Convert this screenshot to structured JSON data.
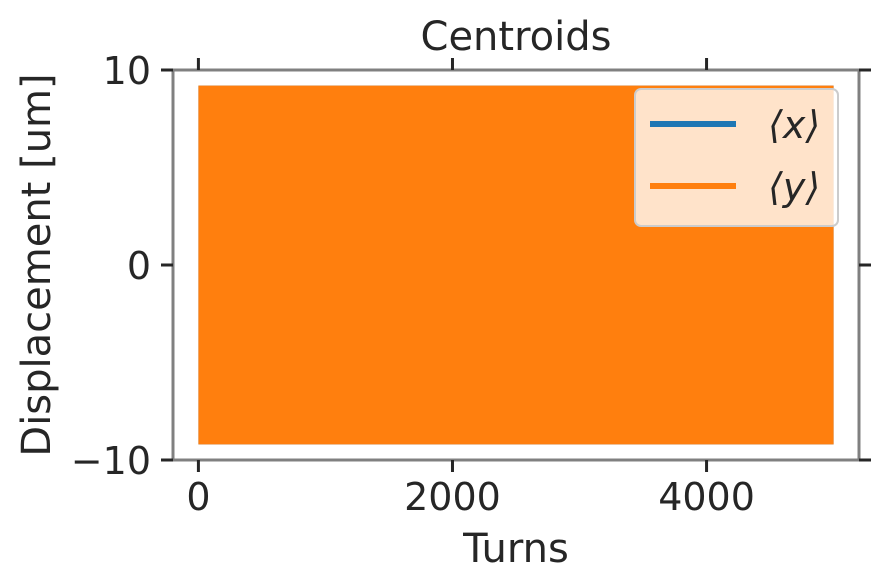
{
  "chart_data": {
    "type": "line",
    "title": "Centroids",
    "xlabel": "Turns",
    "ylabel": "Displacement [um]",
    "xlim": [
      -200,
      5200
    ],
    "ylim": [
      -10,
      10
    ],
    "xticks": [
      0,
      2000,
      4000
    ],
    "xtick_labels": [
      "0",
      "2000",
      "4000"
    ],
    "yticks": [
      -10,
      0,
      10
    ],
    "ytick_labels": [
      "−10",
      "0",
      "10"
    ],
    "grid": false,
    "legend_position": "top-right",
    "series": [
      {
        "name": "⟨x⟩",
        "color": "#1f77b4",
        "description_values": {
          "turns": [
            0,
            5000
          ],
          "amplitude": 9.2,
          "oscillation": "dense, fills band"
        }
      },
      {
        "name": "⟨y⟩",
        "color": "#ff7f0e",
        "description_values": {
          "turns": [
            0,
            5000
          ],
          "amplitude": 9.2,
          "oscillation": "dense, fills band"
        }
      }
    ]
  }
}
